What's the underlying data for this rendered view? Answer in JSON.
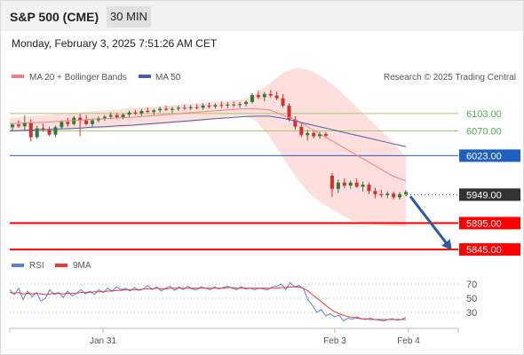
{
  "header": {
    "title": "S&P 500 (CME)",
    "timeframe": "30 MIN",
    "datetime": "Monday, February 3, 2025 7:51:26 AM CET"
  },
  "legend": {
    "items": [
      "MA 20 + Bollinger Bands",
      "MA 50"
    ],
    "credit": "Research © 2025 Trading Central"
  },
  "colors": {
    "bullish": "#2e7d32",
    "bearish": "#d32f2f",
    "ma20": "#f08080",
    "ma50": "#4a5fa8",
    "bollinger_fill": "#ffd6d6",
    "support": "#ff0000",
    "pivot": "#1f5fbf",
    "resistance": "#9ccc65",
    "rsi": "#5b7fd6",
    "rsi_ma": "#e53935",
    "arrow": "#2b5a9e"
  },
  "chart_data": [
    {
      "type": "candlestick",
      "title": "S&P 500 (CME)",
      "timeframe": "30 MIN",
      "xticks": [
        "Jan 31",
        "Feb 3",
        "Feb 4"
      ],
      "ylim": [
        5830,
        6150
      ],
      "levels": [
        {
          "value": 6103.0,
          "label": "6103.00",
          "kind": "resistance"
        },
        {
          "value": 6070.0,
          "label": "6070.00",
          "kind": "resistance"
        },
        {
          "value": 6023.0,
          "label": "6023.00",
          "kind": "pivot"
        },
        {
          "value": 5949.0,
          "label": "5949.00",
          "kind": "last"
        },
        {
          "value": 5895.0,
          "label": "5895.00",
          "kind": "support"
        },
        {
          "value": 5845.0,
          "label": "5845.00",
          "kind": "support"
        }
      ],
      "candles": [
        [
          6077,
          6084,
          6070,
          6082
        ],
        [
          6082,
          6090,
          6076,
          6079
        ],
        [
          6079,
          6100,
          6070,
          6086
        ],
        [
          6086,
          6092,
          6050,
          6058
        ],
        [
          6058,
          6080,
          6055,
          6075
        ],
        [
          6075,
          6084,
          6068,
          6072
        ],
        [
          6072,
          6078,
          6060,
          6063
        ],
        [
          6063,
          6080,
          6058,
          6077
        ],
        [
          6077,
          6090,
          6074,
          6087
        ],
        [
          6087,
          6095,
          6078,
          6083
        ],
        [
          6083,
          6098,
          6080,
          6095
        ],
        [
          6095,
          6102,
          6060,
          6090
        ],
        [
          6090,
          6100,
          6080,
          6083
        ],
        [
          6083,
          6094,
          6078,
          6090
        ],
        [
          6090,
          6098,
          6086,
          6094
        ],
        [
          6094,
          6100,
          6089,
          6097
        ],
        [
          6097,
          6105,
          6092,
          6100
        ],
        [
          6100,
          6104,
          6093,
          6096
        ],
        [
          6096,
          6104,
          6092,
          6101
        ],
        [
          6101,
          6108,
          6096,
          6105
        ],
        [
          6105,
          6110,
          6100,
          6103
        ],
        [
          6103,
          6112,
          6098,
          6108
        ],
        [
          6108,
          6114,
          6104,
          6106
        ],
        [
          6106,
          6112,
          6100,
          6109
        ],
        [
          6109,
          6116,
          6105,
          6112
        ],
        [
          6112,
          6118,
          6108,
          6110
        ],
        [
          6110,
          6116,
          6104,
          6112
        ],
        [
          6112,
          6118,
          6108,
          6114
        ],
        [
          6114,
          6120,
          6110,
          6113
        ],
        [
          6113,
          6119,
          6109,
          6115
        ],
        [
          6115,
          6121,
          6111,
          6114
        ],
        [
          6114,
          6122,
          6110,
          6118
        ],
        [
          6118,
          6124,
          6113,
          6116
        ],
        [
          6116,
          6122,
          6112,
          6119
        ],
        [
          6119,
          6126,
          6114,
          6118
        ],
        [
          6118,
          6125,
          6113,
          6120
        ],
        [
          6120,
          6126,
          6115,
          6119
        ],
        [
          6119,
          6125,
          6114,
          6121
        ],
        [
          6121,
          6128,
          6116,
          6125
        ],
        [
          6125,
          6142,
          6122,
          6138
        ],
        [
          6138,
          6146,
          6130,
          6134
        ],
        [
          6134,
          6144,
          6126,
          6140
        ],
        [
          6140,
          6148,
          6133,
          6137
        ],
        [
          6137,
          6145,
          6128,
          6132
        ],
        [
          6132,
          6140,
          6115,
          6118
        ],
        [
          6118,
          6122,
          6088,
          6092
        ],
        [
          6092,
          6098,
          6072,
          6078
        ],
        [
          6078,
          6084,
          6058,
          6062
        ],
        [
          6062,
          6072,
          6052,
          6066
        ],
        [
          6066,
          6070,
          6056,
          6060
        ],
        [
          6060,
          6068,
          6055,
          6064
        ],
        [
          6064,
          6068,
          6058,
          6061
        ],
        [
          5985,
          5990,
          5945,
          5960
        ],
        [
          5960,
          5978,
          5952,
          5972
        ],
        [
          5972,
          5980,
          5962,
          5966
        ],
        [
          5966,
          5976,
          5960,
          5972
        ],
        [
          5972,
          5980,
          5962,
          5964
        ],
        [
          5964,
          5974,
          5955,
          5968
        ],
        [
          5968,
          5972,
          5950,
          5956
        ],
        [
          5956,
          5962,
          5942,
          5950
        ],
        [
          5950,
          5958,
          5944,
          5948
        ],
        [
          5948,
          5955,
          5942,
          5951
        ],
        [
          5951,
          5955,
          5940,
          5944
        ],
        [
          5944,
          5954,
          5940,
          5950
        ],
        [
          5950,
          5958,
          5946,
          5954
        ]
      ],
      "ma20": [
        6084,
        6085,
        6086,
        6087,
        6089,
        6090,
        6092,
        6093,
        6095,
        6096,
        6098,
        6100,
        6102,
        6104,
        6106,
        6108,
        6110,
        6112,
        6112,
        6110,
        6100,
        6090,
        6075,
        6060,
        6045,
        6030,
        6015,
        6000,
        5985,
        5975
      ],
      "ma50": [
        6070,
        6071,
        6072,
        6073,
        6074,
        6075,
        6077,
        6078,
        6080,
        6081,
        6083,
        6085,
        6087,
        6089,
        6091,
        6093,
        6095,
        6097,
        6098,
        6098,
        6094,
        6088,
        6082,
        6076,
        6070,
        6064,
        6058,
        6052,
        6046,
        6040
      ],
      "bollinger_upper": [
        6095,
        6097,
        6099,
        6101,
        6103,
        6105,
        6107,
        6109,
        6111,
        6113,
        6115,
        6117,
        6119,
        6121,
        6123,
        6125,
        6127,
        6130,
        6140,
        6160,
        6180,
        6190,
        6185,
        6170,
        6150,
        6125,
        6100,
        6075,
        6050,
        6020
      ],
      "bollinger_lower": [
        6068,
        6069,
        6070,
        6071,
        6072,
        6073,
        6074,
        6075,
        6076,
        6078,
        6080,
        6082,
        6084,
        6086,
        6088,
        6092,
        6096,
        6100,
        6090,
        6060,
        6020,
        5980,
        5950,
        5930,
        5915,
        5900,
        5895,
        5892,
        5890,
        5888
      ],
      "forecast_arrow": {
        "from": 5949.0,
        "to": 5845.0
      }
    },
    {
      "type": "line",
      "title": "RSI",
      "yticks": [
        70,
        50,
        30
      ],
      "ylim": [
        10,
        80
      ],
      "series": [
        {
          "name": "RSI",
          "values": [
            62,
            55,
            64,
            48,
            60,
            52,
            58,
            46,
            50,
            62,
            55,
            58,
            51,
            60,
            53,
            57,
            62,
            56,
            60,
            55,
            62,
            58,
            64,
            60,
            66,
            62,
            64,
            60,
            65,
            61,
            63,
            68,
            62,
            66,
            60,
            64,
            67,
            61,
            66,
            62,
            67,
            63,
            62,
            66,
            64,
            62,
            66,
            63,
            65,
            67,
            64,
            62,
            66,
            63,
            64,
            62,
            64,
            63,
            62,
            66,
            67,
            70,
            62,
            72,
            66,
            68,
            63,
            48,
            40,
            30,
            34,
            25,
            28,
            24,
            26,
            18,
            22,
            20,
            24,
            21,
            20,
            22,
            20,
            19,
            18,
            20,
            21,
            19,
            20,
            23
          ]
        },
        {
          "name": "9MA",
          "values": [
            58,
            57,
            58,
            56,
            57,
            56,
            57,
            56,
            55,
            56,
            57,
            57,
            56,
            57,
            57,
            57,
            58,
            58,
            58,
            59,
            59,
            59,
            60,
            60,
            61,
            61,
            62,
            62,
            62,
            62,
            63,
            63,
            63,
            64,
            63,
            63,
            64,
            64,
            64,
            64,
            64,
            64,
            64,
            64,
            64,
            64,
            64,
            64,
            64,
            65,
            65,
            64,
            64,
            64,
            64,
            64,
            64,
            64,
            64,
            64,
            64,
            65,
            65,
            66,
            66,
            66,
            64,
            60,
            55,
            50,
            45,
            40,
            35,
            31,
            28,
            26,
            24,
            23,
            22,
            21,
            21,
            20,
            20,
            20,
            20,
            20,
            20,
            20,
            20,
            20
          ]
        }
      ]
    }
  ]
}
